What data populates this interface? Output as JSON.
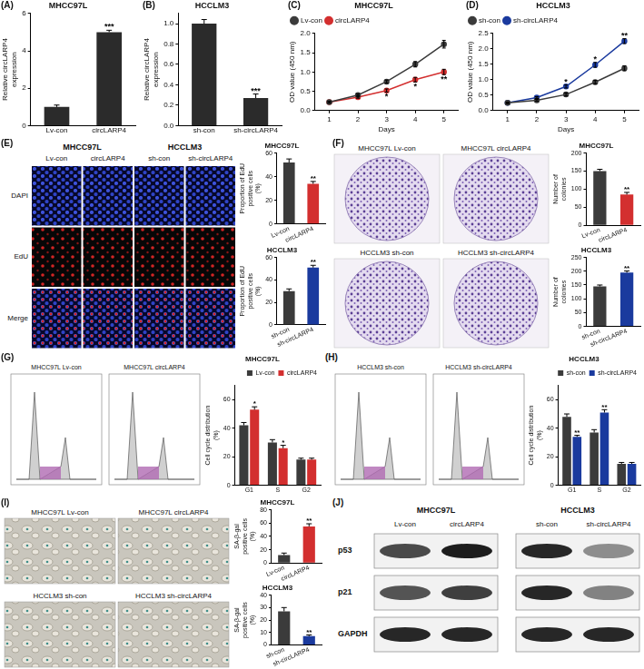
{
  "chart_data": [
    {
      "type": "bar",
      "panel": "(A)",
      "title": "MHCC97L",
      "y_label": "Relative circLARP4 expression",
      "categories": [
        "Lv-con",
        "circLARP4"
      ],
      "values": [
        1.0,
        5.0
      ],
      "errors": [
        0.1,
        0.1
      ],
      "colors": [
        "#2b2b2b",
        "#2b2b2b"
      ],
      "ylim": [
        0,
        6
      ],
      "yticks": [
        0,
        2,
        4,
        6
      ],
      "grid": false,
      "annotations": [
        {
          "category": "circLARP4",
          "text": "***"
        }
      ]
    },
    {
      "type": "bar",
      "panel": "(B)",
      "title": "HCCLM3",
      "y_label": "Relative circLARP4 expression",
      "categories": [
        "sh-con",
        "sh-circLARP4"
      ],
      "values": [
        1.0,
        0.27
      ],
      "errors": [
        0.04,
        0.04
      ],
      "colors": [
        "#2b2b2b",
        "#2b2b2b"
      ],
      "ylim": [
        0,
        1.1
      ],
      "yticks": [
        {
          "value": 0,
          "label": "0.0"
        },
        0.2,
        0.4,
        0.6,
        0.8,
        {
          "value": 1,
          "label": "1.0"
        }
      ],
      "grid": false,
      "annotations": [
        {
          "category": "sh-circLARP4",
          "text": "***"
        }
      ]
    },
    {
      "type": "line",
      "panel": "(C)",
      "title": "MHCC97L",
      "x_label": "Days",
      "y_label": "OD value (450 nm)",
      "x": [
        1,
        2,
        3,
        4,
        5
      ],
      "xlim": [
        0.5,
        5.5
      ],
      "xticks": [
        1,
        2,
        3,
        4,
        5
      ],
      "ylim": [
        0,
        2
      ],
      "yticks": [
        {
          "value": 0,
          "label": "0.0"
        },
        0.5,
        {
          "value": 1,
          "label": "1.0"
        },
        1.5,
        {
          "value": 2,
          "label": "2.0"
        }
      ],
      "grid": false,
      "legend": "upper left",
      "series": [
        {
          "name": "Lv-con",
          "color": "#3b3b3b",
          "marker": "circle",
          "values": [
            0.22,
            0.4,
            0.75,
            1.2,
            1.72
          ],
          "errors": [
            0.02,
            0.03,
            0.04,
            0.07,
            0.1
          ]
        },
        {
          "name": "circLARP4",
          "color": "#d32f2f",
          "marker": "circle",
          "values": [
            0.22,
            0.35,
            0.52,
            0.8,
            1.0
          ],
          "errors": [
            0.02,
            0.03,
            0.04,
            0.06,
            0.07
          ]
        }
      ],
      "annotations": [
        {
          "x": 3,
          "series": "circLARP4",
          "text": "*"
        },
        {
          "x": 4,
          "series": "circLARP4",
          "text": "*"
        },
        {
          "x": 5,
          "series": "circLARP4",
          "text": "**"
        }
      ]
    },
    {
      "type": "line",
      "panel": "(D)",
      "title": "HCCLM3",
      "x_label": "Days",
      "y_label": "OD value (450 nm)",
      "x": [
        1,
        2,
        3,
        4,
        5
      ],
      "xlim": [
        0.5,
        5.5
      ],
      "xticks": [
        1,
        2,
        3,
        4,
        5
      ],
      "ylim": [
        0,
        2.5
      ],
      "yticks": [
        {
          "value": 0,
          "label": "0.0"
        },
        0.5,
        {
          "value": 1,
          "label": "1.0"
        },
        1.5,
        {
          "value": 2,
          "label": "2.0"
        },
        2.5
      ],
      "grid": false,
      "legend": "upper left",
      "series": [
        {
          "name": "sh-con",
          "color": "#3b3b3b",
          "marker": "circle",
          "values": [
            0.25,
            0.33,
            0.52,
            0.92,
            1.37
          ],
          "errors": [
            0.02,
            0.03,
            0.05,
            0.06,
            0.08
          ]
        },
        {
          "name": "sh-circLARP4",
          "color": "#1a3a9e",
          "marker": "circle",
          "values": [
            0.25,
            0.42,
            0.78,
            1.48,
            2.25
          ],
          "errors": [
            0.02,
            0.03,
            0.05,
            0.08,
            0.08
          ]
        }
      ],
      "annotations": [
        {
          "x": 3,
          "series": "sh-circLARP4",
          "text": "*"
        },
        {
          "x": 4,
          "series": "sh-circLARP4",
          "text": "*"
        },
        {
          "x": 5,
          "series": "sh-circLARP4",
          "text": "**"
        }
      ]
    },
    {
      "type": "bar",
      "title": "MHCC97L",
      "y_label": "Proportion of EdU positive cells (%)",
      "categories": [
        "Lv-con",
        "circLARP4"
      ],
      "values": [
        52,
        34
      ],
      "errors": [
        3,
        2
      ],
      "colors": [
        "#3b3b3b",
        "#d32f2f"
      ],
      "ylim": [
        0,
        60
      ],
      "yticks": [
        0,
        20,
        40,
        60
      ],
      "grid": false,
      "annotations": [
        {
          "category": "circLARP4",
          "text": "**"
        }
      ]
    },
    {
      "type": "bar",
      "title": "HCCLM3",
      "y_label": "Proportion of EdU positive cells (%)",
      "categories": [
        "sh-con",
        "sh-circLARP4"
      ],
      "values": [
        30,
        51
      ],
      "errors": [
        2,
        2
      ],
      "colors": [
        "#3b3b3b",
        "#1a3a9e"
      ],
      "ylim": [
        0,
        60
      ],
      "yticks": [
        0,
        20,
        40,
        60
      ],
      "grid": false,
      "annotations": [
        {
          "category": "sh-circLARP4",
          "text": "**"
        }
      ]
    },
    {
      "type": "bar",
      "title": "MHCC97L",
      "y_label": "Number of colonies",
      "categories": [
        "Lv-con",
        "circLARP4"
      ],
      "values": [
        150,
        85
      ],
      "errors": [
        5,
        6
      ],
      "colors": [
        "#3b3b3b",
        "#d32f2f"
      ],
      "ylim": [
        0,
        200
      ],
      "yticks": [
        0,
        50,
        100,
        150,
        200
      ],
      "grid": false,
      "annotations": [
        {
          "category": "circLARP4",
          "text": "**"
        }
      ]
    },
    {
      "type": "bar",
      "title": "HCCLM3",
      "y_label": "Number of colonies",
      "categories": [
        "sh-con",
        "sh-circLARP4"
      ],
      "values": [
        145,
        195
      ],
      "errors": [
        5,
        6
      ],
      "colors": [
        "#3b3b3b",
        "#1a3a9e"
      ],
      "ylim": [
        0,
        250
      ],
      "yticks": [
        0,
        50,
        100,
        150,
        200,
        250
      ],
      "grid": false,
      "annotations": [
        {
          "category": "sh-circLARP4",
          "text": "**"
        }
      ]
    },
    {
      "type": "bar",
      "title": "MHCC97L",
      "y_label": "Cell cycle distribution (%)",
      "categories": [
        "G1",
        "S",
        "G2"
      ],
      "ylim": [
        0,
        70
      ],
      "yticks": [
        0,
        20,
        40,
        60
      ],
      "grid": false,
      "legend": "upper right",
      "series": [
        {
          "name": "Lv-con",
          "color": "#3b3b3b",
          "values": [
            42,
            30,
            18
          ],
          "errors": [
            2,
            2,
            1
          ]
        },
        {
          "name": "circLARP4",
          "color": "#d32f2f",
          "values": [
            53,
            26,
            18
          ],
          "errors": [
            2,
            2,
            1
          ]
        }
      ],
      "annotations": [
        {
          "category": "G1",
          "series": "circLARP4",
          "text": "*"
        },
        {
          "category": "S",
          "series": "circLARP4",
          "text": "*"
        }
      ]
    },
    {
      "type": "bar",
      "title": "HCCLM3",
      "y_label": "Cell cycle distribution (%)",
      "categories": [
        "G1",
        "S",
        "G2"
      ],
      "ylim": [
        0,
        70
      ],
      "yticks": [
        0,
        20,
        40,
        60
      ],
      "grid": false,
      "legend": "upper right",
      "series": [
        {
          "name": "sh-con",
          "color": "#3b3b3b",
          "values": [
            48,
            37,
            15
          ],
          "errors": [
            2,
            2,
            1
          ]
        },
        {
          "name": "sh-circLARP4",
          "color": "#1a3a9e",
          "values": [
            34,
            51,
            15
          ],
          "errors": [
            1,
            2,
            1
          ]
        }
      ],
      "annotations": [
        {
          "category": "G1",
          "series": "sh-circLARP4",
          "text": "**"
        },
        {
          "category": "S",
          "series": "sh-circLARP4",
          "text": "**"
        }
      ]
    },
    {
      "type": "bar",
      "title": "MHCC97L",
      "y_label": "SA-β-gal positive cells (%)",
      "categories": [
        "Lv-con",
        "circLARP4"
      ],
      "values": [
        12,
        55
      ],
      "errors": [
        3,
        4
      ],
      "colors": [
        "#3b3b3b",
        "#d32f2f"
      ],
      "ylim": [
        0,
        80
      ],
      "yticks": [
        0,
        20,
        40,
        60,
        80
      ],
      "grid": false,
      "annotations": [
        {
          "category": "circLARP4",
          "text": "**"
        }
      ]
    },
    {
      "type": "bar",
      "title": "HCCLM3",
      "y_label": "SA-β-gal positive cells (%)",
      "categories": [
        "sh-con",
        "sh-circLARP4"
      ],
      "values": [
        27,
        7
      ],
      "errors": [
        3,
        1
      ],
      "colors": [
        "#3b3b3b",
        "#1a3a9e"
      ],
      "ylim": [
        0,
        40
      ],
      "yticks": [
        0,
        10,
        20,
        30,
        40
      ],
      "grid": false,
      "annotations": [
        {
          "category": "sh-circLARP4",
          "text": "**"
        }
      ]
    }
  ],
  "image_panels": {
    "E": {
      "panel": "(E)",
      "groups": [
        {
          "title": "MHCC97L",
          "columns": [
            "Lv-con",
            "circLARP4"
          ]
        },
        {
          "title": "HCCLM3",
          "columns": [
            "sh-con",
            "sh-circLARP4"
          ]
        }
      ],
      "rows": [
        "DAPI",
        "EdU",
        "Merge"
      ]
    },
    "F": {
      "panel": "(F)",
      "images": [
        "MHCC97L Lv-con",
        "MHCC97L circLARP4",
        "HCCLM3 sh-con",
        "HCCLM3 sh-circLARP4"
      ]
    },
    "G": {
      "panel": "(G)",
      "images": [
        "MHCC97L Lv-con",
        "MHCC97L circLARP4"
      ]
    },
    "H": {
      "panel": "(H)",
      "images": [
        "HCCLM3 sh-con",
        "HCCLM3 sh-circLARP4"
      ]
    },
    "I": {
      "panel": "(I)",
      "images": [
        "MHCC97L Lv-con",
        "MHCC97L circLARP4",
        "HCCLM3 sh-con",
        "HCCLM3 sh-circLARP4"
      ]
    },
    "J": {
      "panel": "(J)",
      "groups": [
        {
          "title": "MHCC97L",
          "columns": [
            "Lv-con",
            "circLARP4"
          ]
        },
        {
          "title": "HCCLM3",
          "columns": [
            "sh-con",
            "sh-circLARP4"
          ]
        }
      ],
      "rows": [
        {
          "label": "p53",
          "bands": [
            0.75,
            0.95,
            0.9,
            0.45
          ]
        },
        {
          "label": "p21",
          "bands": [
            0.7,
            0.8,
            0.9,
            0.5
          ]
        },
        {
          "label": "GAPDH",
          "bands": [
            0.9,
            0.9,
            0.9,
            0.9
          ]
        }
      ]
    }
  }
}
